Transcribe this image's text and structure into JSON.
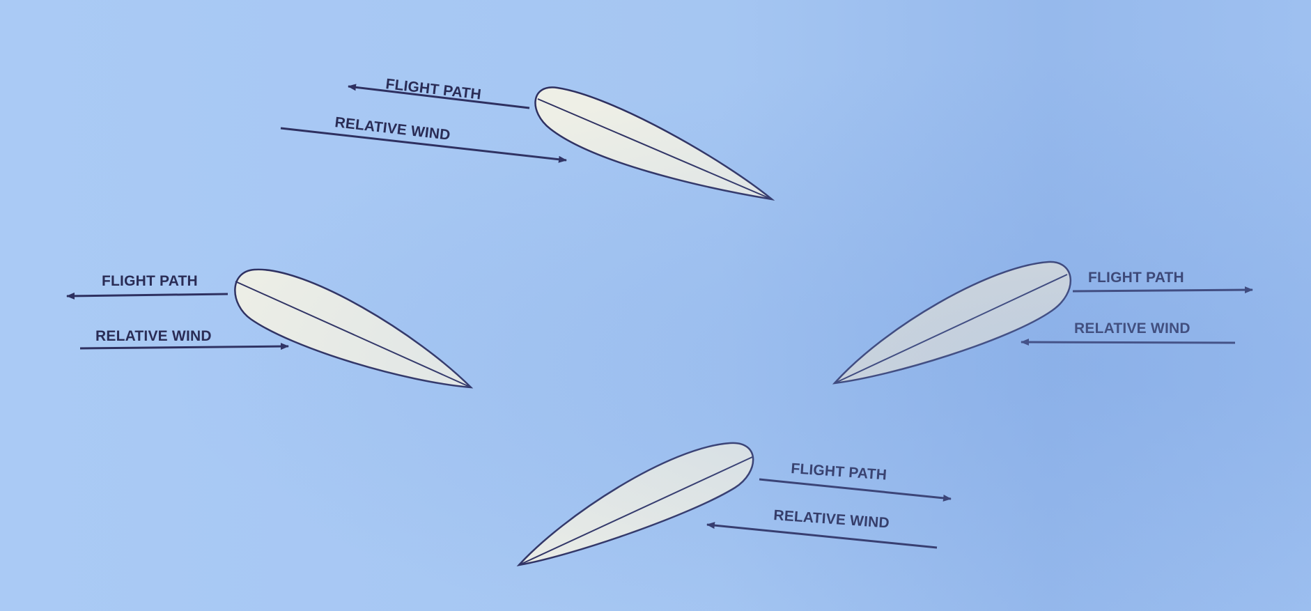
{
  "figure": {
    "background_color": "#a9c9f0",
    "ink_color": "#2e3060",
    "airfoil_fill": "#eeefe6",
    "cases": [
      {
        "id": "top",
        "flight_path_label": "FLIGHT PATH",
        "relative_wind_label": "RELATIVE WIND"
      },
      {
        "id": "left",
        "flight_path_label": "FLIGHT PATH",
        "relative_wind_label": "RELATIVE WIND"
      },
      {
        "id": "right",
        "flight_path_label": "FLIGHT PATH",
        "relative_wind_label": "RELATIVE WIND"
      },
      {
        "id": "bottom",
        "flight_path_label": "FLIGHT PATH",
        "relative_wind_label": "RELATIVE WIND"
      }
    ]
  }
}
